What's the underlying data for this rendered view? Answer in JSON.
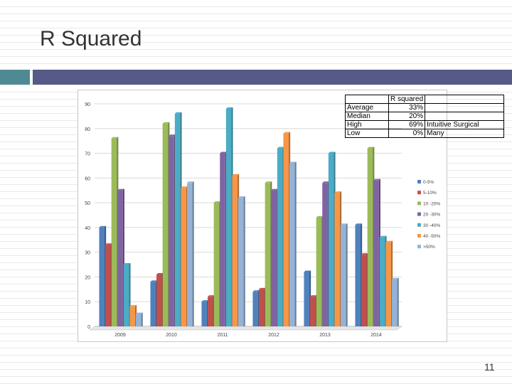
{
  "slide": {
    "title": "R Squared",
    "page_number": "11"
  },
  "r_table": {
    "header": [
      "",
      "R squared",
      ""
    ],
    "rows": [
      [
        "Average",
        "33%",
        ""
      ],
      [
        "Median",
        "20%",
        ""
      ],
      [
        "High",
        "69%",
        "Intuitive Surgical"
      ],
      [
        "Low",
        "0%",
        "Many"
      ]
    ]
  },
  "chart_data": {
    "type": "bar",
    "categories": [
      "2009",
      "2010",
      "2011",
      "2012",
      "2013",
      "2014"
    ],
    "ylim": [
      0,
      90
    ],
    "yticks": [
      0,
      10,
      20,
      30,
      40,
      50,
      60,
      70,
      80,
      90
    ],
    "legend_position": "right",
    "series": [
      {
        "name": "0-5%",
        "color": "#4f81bd",
        "values": [
          40,
          18,
          10,
          14,
          22,
          41
        ]
      },
      {
        "name": "5-10%",
        "color": "#c0504d",
        "values": [
          33,
          21,
          12,
          15,
          12,
          29
        ]
      },
      {
        "name": "10 -20%",
        "color": "#9bbb59",
        "values": [
          76,
          82,
          50,
          58,
          44,
          72
        ]
      },
      {
        "name": "20 -30%",
        "color": "#8064a2",
        "values": [
          55,
          77,
          70,
          55,
          58,
          59
        ]
      },
      {
        "name": "30 -40%",
        "color": "#4bacc6",
        "values": [
          25,
          86,
          88,
          72,
          70,
          36
        ]
      },
      {
        "name": "40 -50%",
        "color": "#f79646",
        "values": [
          8,
          56,
          61,
          78,
          54,
          34
        ]
      },
      {
        "name": ">50%",
        "color": "#95b3d7",
        "values": [
          5,
          58,
          52,
          66,
          41,
          19
        ]
      }
    ]
  }
}
